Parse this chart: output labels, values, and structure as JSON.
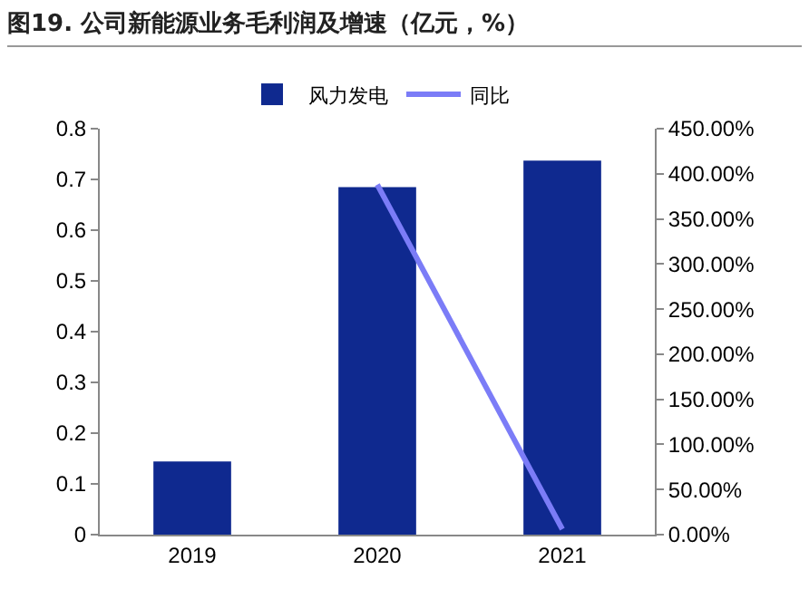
{
  "chart_data": {
    "type": "bar",
    "title": "图19. 公司新能源业务毛利润及增速（亿元，%）",
    "categories": [
      "2019",
      "2020",
      "2021"
    ],
    "series": [
      {
        "name": "风力发电",
        "color": "#0f298f",
        "values": [
          0.144,
          0.685,
          0.737
        ]
      },
      {
        "name": "同比",
        "type": "line",
        "axis": "y2",
        "color": "#7b7cf7",
        "values": [
          null,
          388,
          6
        ],
        "marker": "none",
        "line_style": "solid"
      }
    ],
    "ylim": [
      0,
      0.8
    ],
    "yticks": [
      0,
      0.1,
      0.2,
      0.3,
      0.4,
      0.5,
      0.6,
      0.7,
      0.8
    ],
    "y2lim": [
      0,
      450
    ],
    "y2ticks": [
      {
        "value": 0,
        "label": "0.00%"
      },
      {
        "value": 50,
        "label": "50.00%"
      },
      {
        "value": 100,
        "label": "100.00%"
      },
      {
        "value": 150,
        "label": "150.00%"
      },
      {
        "value": 200,
        "label": "200.00%"
      },
      {
        "value": 250,
        "label": "250.00%"
      },
      {
        "value": 300,
        "label": "300.00%"
      },
      {
        "value": 350,
        "label": "350.00%"
      },
      {
        "value": 400,
        "label": "400.00%"
      },
      {
        "value": 450,
        "label": "450.00%"
      }
    ],
    "legend": "top",
    "grid": false
  }
}
